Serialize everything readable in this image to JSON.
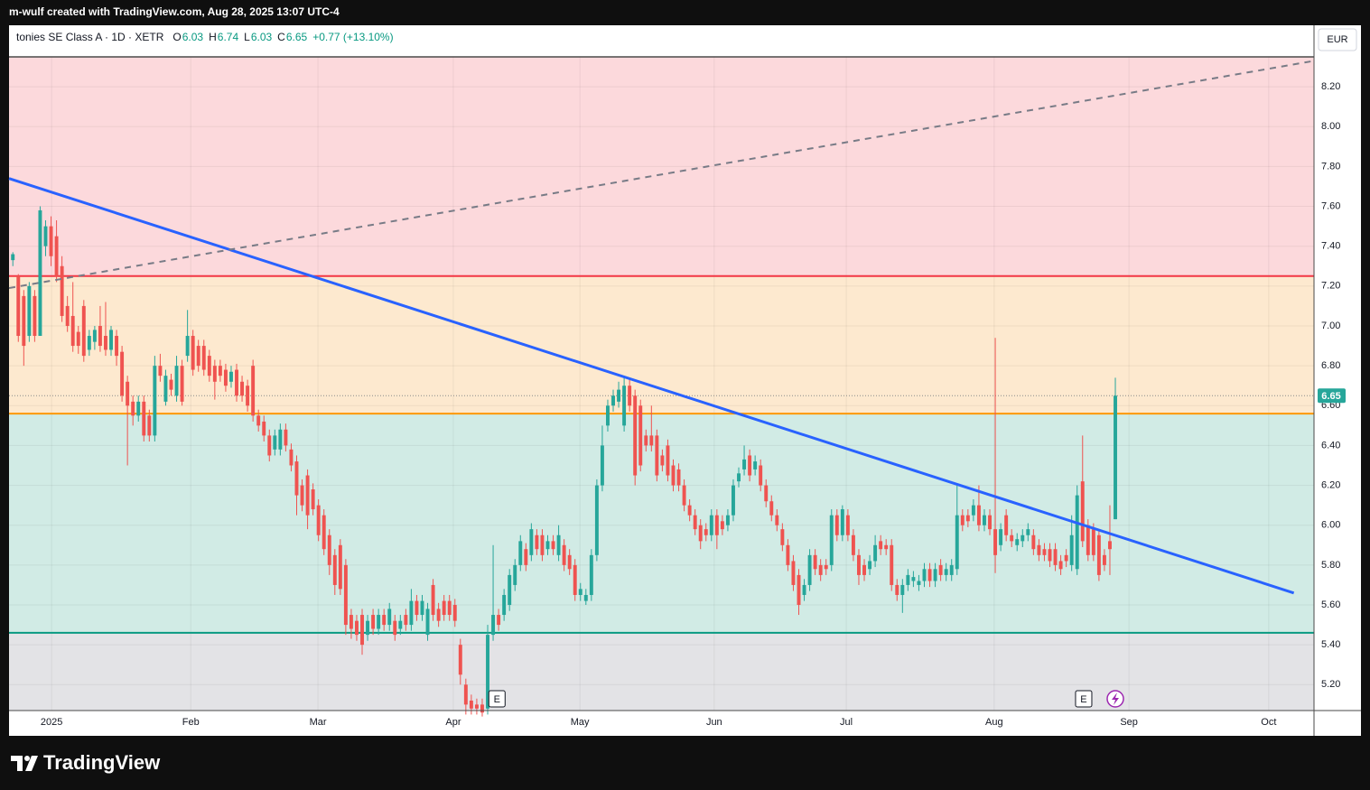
{
  "header": {
    "attribution": "m-wulf created with TradingView.com, Aug 28, 2025 13:07 UTC-4",
    "symbol": "tonies SE Class A · 1D · XETR",
    "ohlc": [
      {
        "label": "O",
        "value": "6.03"
      },
      {
        "label": "H",
        "value": "6.74"
      },
      {
        "label": "L",
        "value": "6.03"
      },
      {
        "label": "C",
        "value": "6.65"
      }
    ],
    "change": "+0.77 (+13.10%)",
    "currency": "EUR"
  },
  "footer": {
    "brand": "TradingView"
  },
  "chart_data": {
    "type": "candlestick",
    "up_color": "#26a69a",
    "down_color": "#ef5350",
    "grid": true,
    "xlim": [
      -0.7,
      238.4
    ],
    "ylim": [
      5.07,
      8.35
    ],
    "xticks": [
      {
        "value": 7.1,
        "label": "2025"
      },
      {
        "value": 32.6,
        "label": "Feb"
      },
      {
        "value": 55.9,
        "label": "Mar"
      },
      {
        "value": 80.7,
        "label": "Apr"
      },
      {
        "value": 103.9,
        "label": "May"
      },
      {
        "value": 128.5,
        "label": "Jun"
      },
      {
        "value": 152.7,
        "label": "Jul"
      },
      {
        "value": 179.8,
        "label": "Aug"
      },
      {
        "value": 204.5,
        "label": "Sep"
      },
      {
        "value": 230.1,
        "label": "Oct"
      }
    ],
    "yticks": [
      {
        "value": 5.2,
        "label": "5.20"
      },
      {
        "value": 5.4,
        "label": "5.40"
      },
      {
        "value": 5.6,
        "label": "5.60"
      },
      {
        "value": 5.8,
        "label": "5.80"
      },
      {
        "value": 6.0,
        "label": "6.00"
      },
      {
        "value": 6.2,
        "label": "6.20"
      },
      {
        "value": 6.4,
        "label": "6.40"
      },
      {
        "value": 6.6,
        "label": "6.60"
      },
      {
        "value": 6.8,
        "label": "6.80"
      },
      {
        "value": 7.0,
        "label": "7.00"
      },
      {
        "value": 7.2,
        "label": "7.20"
      },
      {
        "value": 7.4,
        "label": "7.40"
      },
      {
        "value": 7.6,
        "label": "7.60"
      },
      {
        "value": 7.8,
        "label": "7.80"
      },
      {
        "value": 8.0,
        "label": "8.00"
      },
      {
        "value": 8.2,
        "label": "8.20"
      }
    ],
    "zones": [
      {
        "low": 7.25,
        "high": 8.35,
        "color": "#fcd9dc"
      },
      {
        "low": 6.56,
        "high": 7.25,
        "color": "#fde9cf"
      },
      {
        "low": 5.46,
        "high": 6.56,
        "color": "#d1ebe5"
      },
      {
        "low": 5.07,
        "high": 5.46,
        "color": "#e3e3e6"
      }
    ],
    "levels": [
      {
        "value": 7.25,
        "color": "#f23645"
      },
      {
        "value": 6.56,
        "color": "#ff9800"
      },
      {
        "value": 5.46,
        "color": "#089981"
      }
    ],
    "trendlines": [
      {
        "x": [
          -0.7,
          234.7
        ],
        "y": [
          7.74,
          5.66
        ],
        "color": "#2962ff",
        "dashed": false
      },
      {
        "x": [
          -0.7,
          238.4
        ],
        "y": [
          7.19,
          8.33
        ],
        "color": "#787b86",
        "dashed": true
      }
    ],
    "last_price": {
      "value": 6.65,
      "label": "6.65",
      "color": "#26a69a"
    },
    "events": [
      {
        "x": 88.7,
        "label": "E"
      },
      {
        "x": 196.2,
        "label": "E"
      }
    ],
    "candles": [
      [
        7.33,
        7.37,
        7.3,
        7.36
      ],
      [
        7.25,
        7.26,
        6.92,
        6.95
      ],
      [
        7.15,
        7.18,
        6.8,
        6.9
      ],
      [
        6.95,
        7.22,
        6.92,
        7.2
      ],
      [
        7.15,
        7.18,
        6.92,
        6.95
      ],
      [
        6.95,
        7.6,
        6.95,
        7.58
      ],
      [
        7.4,
        7.53,
        7.35,
        7.5
      ],
      [
        7.5,
        7.55,
        7.3,
        7.35
      ],
      [
        7.45,
        7.53,
        7.22,
        7.25
      ],
      [
        7.3,
        7.35,
        7.02,
        7.05
      ],
      [
        7.1,
        7.15,
        6.97,
        7.0
      ],
      [
        7.05,
        7.22,
        6.87,
        6.9
      ],
      [
        6.97,
        7.0,
        6.86,
        6.9
      ],
      [
        7.1,
        7.13,
        6.82,
        6.85
      ],
      [
        6.88,
        6.98,
        6.85,
        6.95
      ],
      [
        6.92,
        7.0,
        6.88,
        6.98
      ],
      [
        7.0,
        7.1,
        6.87,
        6.9
      ],
      [
        6.95,
        7.12,
        6.85,
        6.88
      ],
      [
        6.88,
        7.0,
        6.85,
        6.98
      ],
      [
        6.95,
        6.98,
        6.8,
        6.85
      ],
      [
        6.87,
        6.9,
        6.62,
        6.65
      ],
      [
        6.72,
        6.75,
        6.3,
        6.6
      ],
      [
        6.62,
        6.65,
        6.5,
        6.55
      ],
      [
        6.55,
        6.65,
        6.52,
        6.62
      ],
      [
        6.62,
        6.65,
        6.42,
        6.45
      ],
      [
        6.55,
        6.58,
        6.42,
        6.45
      ],
      [
        6.45,
        6.85,
        6.42,
        6.8
      ],
      [
        6.8,
        6.86,
        6.72,
        6.75
      ],
      [
        6.62,
        6.78,
        6.6,
        6.75
      ],
      [
        6.73,
        6.76,
        6.65,
        6.68
      ],
      [
        6.65,
        6.85,
        6.62,
        6.8
      ],
      [
        6.8,
        6.83,
        6.6,
        6.62
      ],
      [
        6.85,
        7.08,
        6.82,
        6.95
      ],
      [
        6.95,
        6.98,
        6.75,
        6.78
      ],
      [
        6.9,
        6.93,
        6.77,
        6.8
      ],
      [
        6.9,
        6.93,
        6.75,
        6.78
      ],
      [
        6.85,
        6.88,
        6.72,
        6.75
      ],
      [
        6.8,
        6.83,
        6.63,
        6.72
      ],
      [
        6.8,
        6.83,
        6.72,
        6.75
      ],
      [
        6.78,
        6.81,
        6.67,
        6.7
      ],
      [
        6.72,
        6.8,
        6.69,
        6.77
      ],
      [
        6.78,
        6.81,
        6.62,
        6.65
      ],
      [
        6.72,
        6.75,
        6.62,
        6.65
      ],
      [
        6.7,
        6.73,
        6.57,
        6.6
      ],
      [
        6.8,
        6.83,
        6.52,
        6.55
      ],
      [
        6.55,
        6.58,
        6.47,
        6.5
      ],
      [
        6.52,
        6.55,
        6.42,
        6.45
      ],
      [
        6.45,
        6.48,
        6.32,
        6.35
      ],
      [
        6.38,
        6.48,
        6.35,
        6.45
      ],
      [
        6.38,
        6.51,
        6.35,
        6.48
      ],
      [
        6.48,
        6.51,
        6.37,
        6.4
      ],
      [
        6.38,
        6.41,
        6.27,
        6.3
      ],
      [
        6.32,
        6.35,
        6.05,
        6.15
      ],
      [
        6.2,
        6.23,
        6.07,
        6.1
      ],
      [
        6.25,
        6.28,
        5.98,
        6.05
      ],
      [
        6.18,
        6.21,
        6.05,
        6.08
      ],
      [
        6.1,
        6.13,
        5.92,
        5.95
      ],
      [
        6.05,
        6.08,
        5.85,
        5.88
      ],
      [
        5.95,
        5.98,
        5.75,
        5.8
      ],
      [
        5.85,
        5.88,
        5.65,
        5.7
      ],
      [
        5.9,
        5.93,
        5.65,
        5.68
      ],
      [
        5.8,
        5.83,
        5.45,
        5.5
      ],
      [
        5.55,
        5.58,
        5.43,
        5.48
      ],
      [
        5.52,
        5.55,
        5.42,
        5.45
      ],
      [
        5.55,
        5.58,
        5.35,
        5.4
      ],
      [
        5.45,
        5.55,
        5.42,
        5.52
      ],
      [
        5.55,
        5.58,
        5.45,
        5.48
      ],
      [
        5.48,
        5.58,
        5.45,
        5.55
      ],
      [
        5.55,
        5.58,
        5.47,
        5.5
      ],
      [
        5.5,
        5.61,
        5.47,
        5.58
      ],
      [
        5.52,
        5.55,
        5.42,
        5.45
      ],
      [
        5.48,
        5.55,
        5.45,
        5.52
      ],
      [
        5.55,
        5.58,
        5.47,
        5.5
      ],
      [
        5.5,
        5.68,
        5.47,
        5.62
      ],
      [
        5.62,
        5.65,
        5.52,
        5.55
      ],
      [
        5.55,
        5.65,
        5.52,
        5.62
      ],
      [
        5.45,
        5.61,
        5.42,
        5.58
      ],
      [
        5.7,
        5.73,
        5.52,
        5.55
      ],
      [
        5.58,
        5.61,
        5.49,
        5.52
      ],
      [
        5.62,
        5.65,
        5.52,
        5.55
      ],
      [
        5.62,
        5.65,
        5.52,
        5.55
      ],
      [
        5.6,
        5.63,
        5.49,
        5.52
      ],
      [
        5.4,
        5.43,
        5.2,
        5.25
      ],
      [
        5.2,
        5.23,
        5.05,
        5.1
      ],
      [
        5.12,
        5.15,
        5.05,
        5.08
      ],
      [
        5.1,
        5.13,
        5.05,
        5.08
      ],
      [
        5.1,
        5.13,
        5.04,
        5.06
      ],
      [
        5.08,
        5.5,
        5.05,
        5.45
      ],
      [
        5.45,
        5.9,
        5.42,
        5.55
      ],
      [
        5.55,
        5.58,
        5.47,
        5.5
      ],
      [
        5.55,
        5.68,
        5.52,
        5.65
      ],
      [
        5.6,
        5.78,
        5.57,
        5.75
      ],
      [
        5.7,
        5.83,
        5.67,
        5.8
      ],
      [
        5.8,
        5.95,
        5.77,
        5.92
      ],
      [
        5.88,
        5.91,
        5.77,
        5.8
      ],
      [
        5.85,
        6.01,
        5.82,
        5.98
      ],
      [
        5.95,
        5.98,
        5.85,
        5.88
      ],
      [
        5.95,
        5.98,
        5.82,
        5.85
      ],
      [
        5.88,
        5.95,
        5.85,
        5.92
      ],
      [
        5.92,
        5.95,
        5.85,
        5.88
      ],
      [
        5.85,
        6.0,
        5.82,
        5.95
      ],
      [
        5.9,
        5.93,
        5.77,
        5.8
      ],
      [
        5.85,
        5.88,
        5.75,
        5.78
      ],
      [
        5.8,
        5.83,
        5.62,
        5.65
      ],
      [
        5.65,
        5.71,
        5.62,
        5.68
      ],
      [
        5.62,
        5.68,
        5.6,
        5.65
      ],
      [
        5.65,
        5.88,
        5.62,
        5.85
      ],
      [
        5.85,
        6.23,
        5.82,
        6.2
      ],
      [
        6.2,
        6.5,
        6.17,
        6.4
      ],
      [
        6.5,
        6.63,
        6.47,
        6.6
      ],
      [
        6.6,
        6.68,
        6.57,
        6.65
      ],
      [
        6.62,
        6.72,
        6.59,
        6.68
      ],
      [
        6.5,
        6.75,
        6.47,
        6.7
      ],
      [
        6.7,
        6.73,
        6.57,
        6.6
      ],
      [
        6.65,
        6.68,
        6.2,
        6.25
      ],
      [
        6.6,
        6.63,
        6.27,
        6.3
      ],
      [
        6.45,
        6.48,
        6.37,
        6.4
      ],
      [
        6.45,
        6.6,
        6.37,
        6.4
      ],
      [
        6.45,
        6.48,
        6.22,
        6.25
      ],
      [
        6.35,
        6.38,
        6.27,
        6.3
      ],
      [
        6.4,
        6.43,
        6.22,
        6.25
      ],
      [
        6.3,
        6.33,
        6.17,
        6.2
      ],
      [
        6.28,
        6.31,
        6.17,
        6.2
      ],
      [
        6.2,
        6.23,
        6.07,
        6.1
      ],
      [
        6.1,
        6.13,
        6.02,
        6.05
      ],
      [
        6.05,
        6.08,
        5.95,
        5.98
      ],
      [
        6.0,
        6.03,
        5.88,
        5.92
      ],
      [
        5.98,
        6.01,
        5.92,
        5.95
      ],
      [
        5.95,
        6.08,
        5.92,
        6.05
      ],
      [
        6.05,
        6.08,
        5.88,
        5.95
      ],
      [
        6.02,
        6.05,
        5.95,
        5.98
      ],
      [
        6.0,
        6.08,
        5.97,
        6.05
      ],
      [
        6.05,
        6.23,
        6.02,
        6.2
      ],
      [
        6.22,
        6.29,
        6.19,
        6.26
      ],
      [
        6.28,
        6.4,
        6.25,
        6.33
      ],
      [
        6.35,
        6.38,
        6.22,
        6.25
      ],
      [
        6.28,
        6.35,
        6.25,
        6.32
      ],
      [
        6.3,
        6.33,
        6.17,
        6.2
      ],
      [
        6.2,
        6.23,
        6.09,
        6.12
      ],
      [
        6.12,
        6.15,
        6.02,
        6.05
      ],
      [
        6.05,
        6.08,
        5.97,
        6.0
      ],
      [
        5.98,
        6.01,
        5.87,
        5.9
      ],
      [
        5.9,
        5.93,
        5.77,
        5.8
      ],
      [
        5.82,
        5.85,
        5.67,
        5.7
      ],
      [
        5.75,
        5.78,
        5.55,
        5.6
      ],
      [
        5.65,
        5.73,
        5.62,
        5.7
      ],
      [
        5.7,
        5.88,
        5.67,
        5.85
      ],
      [
        5.85,
        5.88,
        5.75,
        5.78
      ],
      [
        5.8,
        5.83,
        5.72,
        5.75
      ],
      [
        5.8,
        5.83,
        5.75,
        5.78
      ],
      [
        5.8,
        6.08,
        5.77,
        6.05
      ],
      [
        6.05,
        6.08,
        5.92,
        5.95
      ],
      [
        5.95,
        6.1,
        5.92,
        6.08
      ],
      [
        6.05,
        6.08,
        5.92,
        5.95
      ],
      [
        5.95,
        5.98,
        5.82,
        5.85
      ],
      [
        5.85,
        5.88,
        5.7,
        5.75
      ],
      [
        5.8,
        5.83,
        5.72,
        5.75
      ],
      [
        5.78,
        5.85,
        5.75,
        5.82
      ],
      [
        5.82,
        5.95,
        5.79,
        5.9
      ],
      [
        5.92,
        5.95,
        5.85,
        5.88
      ],
      [
        5.9,
        5.93,
        5.85,
        5.88
      ],
      [
        5.9,
        5.93,
        5.67,
        5.7
      ],
      [
        5.7,
        5.73,
        5.62,
        5.65
      ],
      [
        5.65,
        5.73,
        5.56,
        5.7
      ],
      [
        5.7,
        5.78,
        5.67,
        5.75
      ],
      [
        5.72,
        5.77,
        5.69,
        5.74
      ],
      [
        5.7,
        5.75,
        5.67,
        5.72
      ],
      [
        5.72,
        5.81,
        5.69,
        5.78
      ],
      [
        5.78,
        5.81,
        5.69,
        5.72
      ],
      [
        5.72,
        5.81,
        5.69,
        5.78
      ],
      [
        5.8,
        5.83,
        5.72,
        5.75
      ],
      [
        5.75,
        5.81,
        5.72,
        5.78
      ],
      [
        5.75,
        5.83,
        5.72,
        5.8
      ],
      [
        5.78,
        6.2,
        5.75,
        6.05
      ],
      [
        6.05,
        6.08,
        5.97,
        6.0
      ],
      [
        6.05,
        6.08,
        5.99,
        6.02
      ],
      [
        6.05,
        6.13,
        6.02,
        6.1
      ],
      [
        6.1,
        6.2,
        5.97,
        6.0
      ],
      [
        6.0,
        6.08,
        5.97,
        6.05
      ],
      [
        6.05,
        6.08,
        5.95,
        5.98
      ],
      [
        5.98,
        6.94,
        5.76,
        5.85
      ],
      [
        5.9,
        6.01,
        5.87,
        5.98
      ],
      [
        6.05,
        6.08,
        5.92,
        5.95
      ],
      [
        5.95,
        5.98,
        5.89,
        5.92
      ],
      [
        5.9,
        5.96,
        5.87,
        5.93
      ],
      [
        5.92,
        5.98,
        5.89,
        5.95
      ],
      [
        5.95,
        6.01,
        5.92,
        5.98
      ],
      [
        5.95,
        5.98,
        5.85,
        5.88
      ],
      [
        5.9,
        5.93,
        5.82,
        5.85
      ],
      [
        5.88,
        5.91,
        5.82,
        5.85
      ],
      [
        5.88,
        5.91,
        5.79,
        5.82
      ],
      [
        5.88,
        5.91,
        5.77,
        5.8
      ],
      [
        5.82,
        5.85,
        5.75,
        5.78
      ],
      [
        5.85,
        5.88,
        5.79,
        5.82
      ],
      [
        5.8,
        6.05,
        5.77,
        5.95
      ],
      [
        5.78,
        6.2,
        5.75,
        6.15
      ],
      [
        6.22,
        6.45,
        5.89,
        5.92
      ],
      [
        6.0,
        6.03,
        5.82,
        5.85
      ],
      [
        5.98,
        6.01,
        5.82,
        5.85
      ],
      [
        5.95,
        5.98,
        5.72,
        5.75
      ],
      [
        5.85,
        5.88,
        5.77,
        5.8
      ],
      [
        5.92,
        6.1,
        5.75,
        5.88
      ],
      [
        6.03,
        6.74,
        6.03,
        6.65
      ]
    ]
  }
}
